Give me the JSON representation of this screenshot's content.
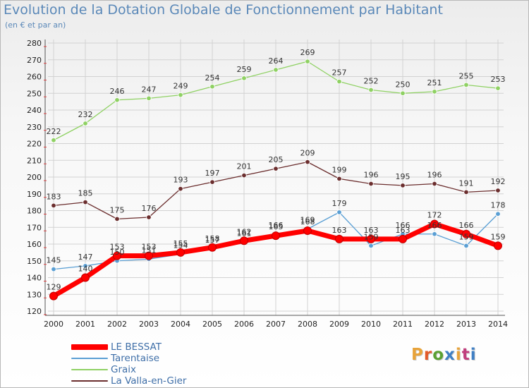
{
  "header": {
    "title": "Evolution de la Dotation Globale de Fonctionnement par Habitant",
    "subtitle": "(en € et par an)"
  },
  "brand": {
    "text": "Proxiti",
    "colors": [
      "#e8a33a",
      "#e25a2b",
      "#5aa032",
      "#3f7fc4",
      "#e8a33a",
      "#c13f7d",
      "#3f7fc4"
    ]
  },
  "chart_data": {
    "type": "line",
    "title": "Evolution de la Dotation Globale de Fonctionnement par Habitant",
    "subtitle": "(en € et par an)",
    "xlabel": "",
    "ylabel": "",
    "x": [
      "2000",
      "2001",
      "2002",
      "2003",
      "2004",
      "2005",
      "2006",
      "2007",
      "2008",
      "2009",
      "2010",
      "2011",
      "2012",
      "2013",
      "2014"
    ],
    "ylim": [
      120,
      280
    ],
    "yticks": [
      "120",
      "130",
      "140",
      "150",
      "160",
      "170",
      "180",
      "190",
      "200",
      "210",
      "220",
      "230",
      "240",
      "250",
      "260",
      "270",
      "280"
    ],
    "grid": true,
    "legend_position": "bottom-left",
    "series": [
      {
        "name": "La Valla-en-Gier",
        "color": "#6b2e2e",
        "values": [
          183,
          185,
          175,
          176,
          193,
          197,
          201,
          205,
          209,
          199,
          196,
          195,
          196,
          191,
          192
        ],
        "labels": [
          "183",
          "185",
          "175",
          "176",
          "193",
          "197",
          "201",
          "205",
          "209",
          "199",
          "196",
          "195",
          "196",
          "191",
          "192"
        ]
      },
      {
        "name": "Graix",
        "color": "#8fd163",
        "values": [
          222,
          232,
          246,
          247,
          249,
          254,
          259,
          264,
          269,
          257,
          252,
          250,
          251,
          255,
          253
        ],
        "labels": [
          "222",
          "232",
          "246",
          "247",
          "249",
          "254",
          "259",
          "264",
          "269",
          "257",
          "252",
          "250",
          "251",
          "255",
          "253"
        ]
      },
      {
        "name": "Tarentaise",
        "color": "#5a9fd4",
        "values": [
          145,
          147,
          150,
          151,
          154,
          157,
          161,
          166,
          169,
          179,
          159,
          166,
          166,
          159,
          178
        ],
        "labels": [
          "145",
          "147",
          "150",
          "151",
          "154",
          "157",
          "161",
          "166",
          "169",
          "179",
          "159",
          "166",
          "166",
          "159",
          "178"
        ]
      },
      {
        "name": "LE BESSAT",
        "color": "#ff0000",
        "values": [
          129,
          140,
          153,
          153,
          155,
          158,
          162,
          165,
          168,
          163,
          163,
          163,
          172,
          166,
          159
        ],
        "labels": [
          "129",
          "140",
          "153",
          "153",
          "155",
          "158",
          "162",
          "165",
          "168",
          "163",
          "163",
          "163",
          "172",
          "166",
          "159"
        ]
      }
    ],
    "legend": [
      {
        "name": "LE BESSAT",
        "color": "#ff0000"
      },
      {
        "name": "Tarentaise",
        "color": "#5a9fd4"
      },
      {
        "name": "Graix",
        "color": "#8fd163"
      },
      {
        "name": "La Valla-en-Gier",
        "color": "#6b2e2e"
      }
    ]
  }
}
